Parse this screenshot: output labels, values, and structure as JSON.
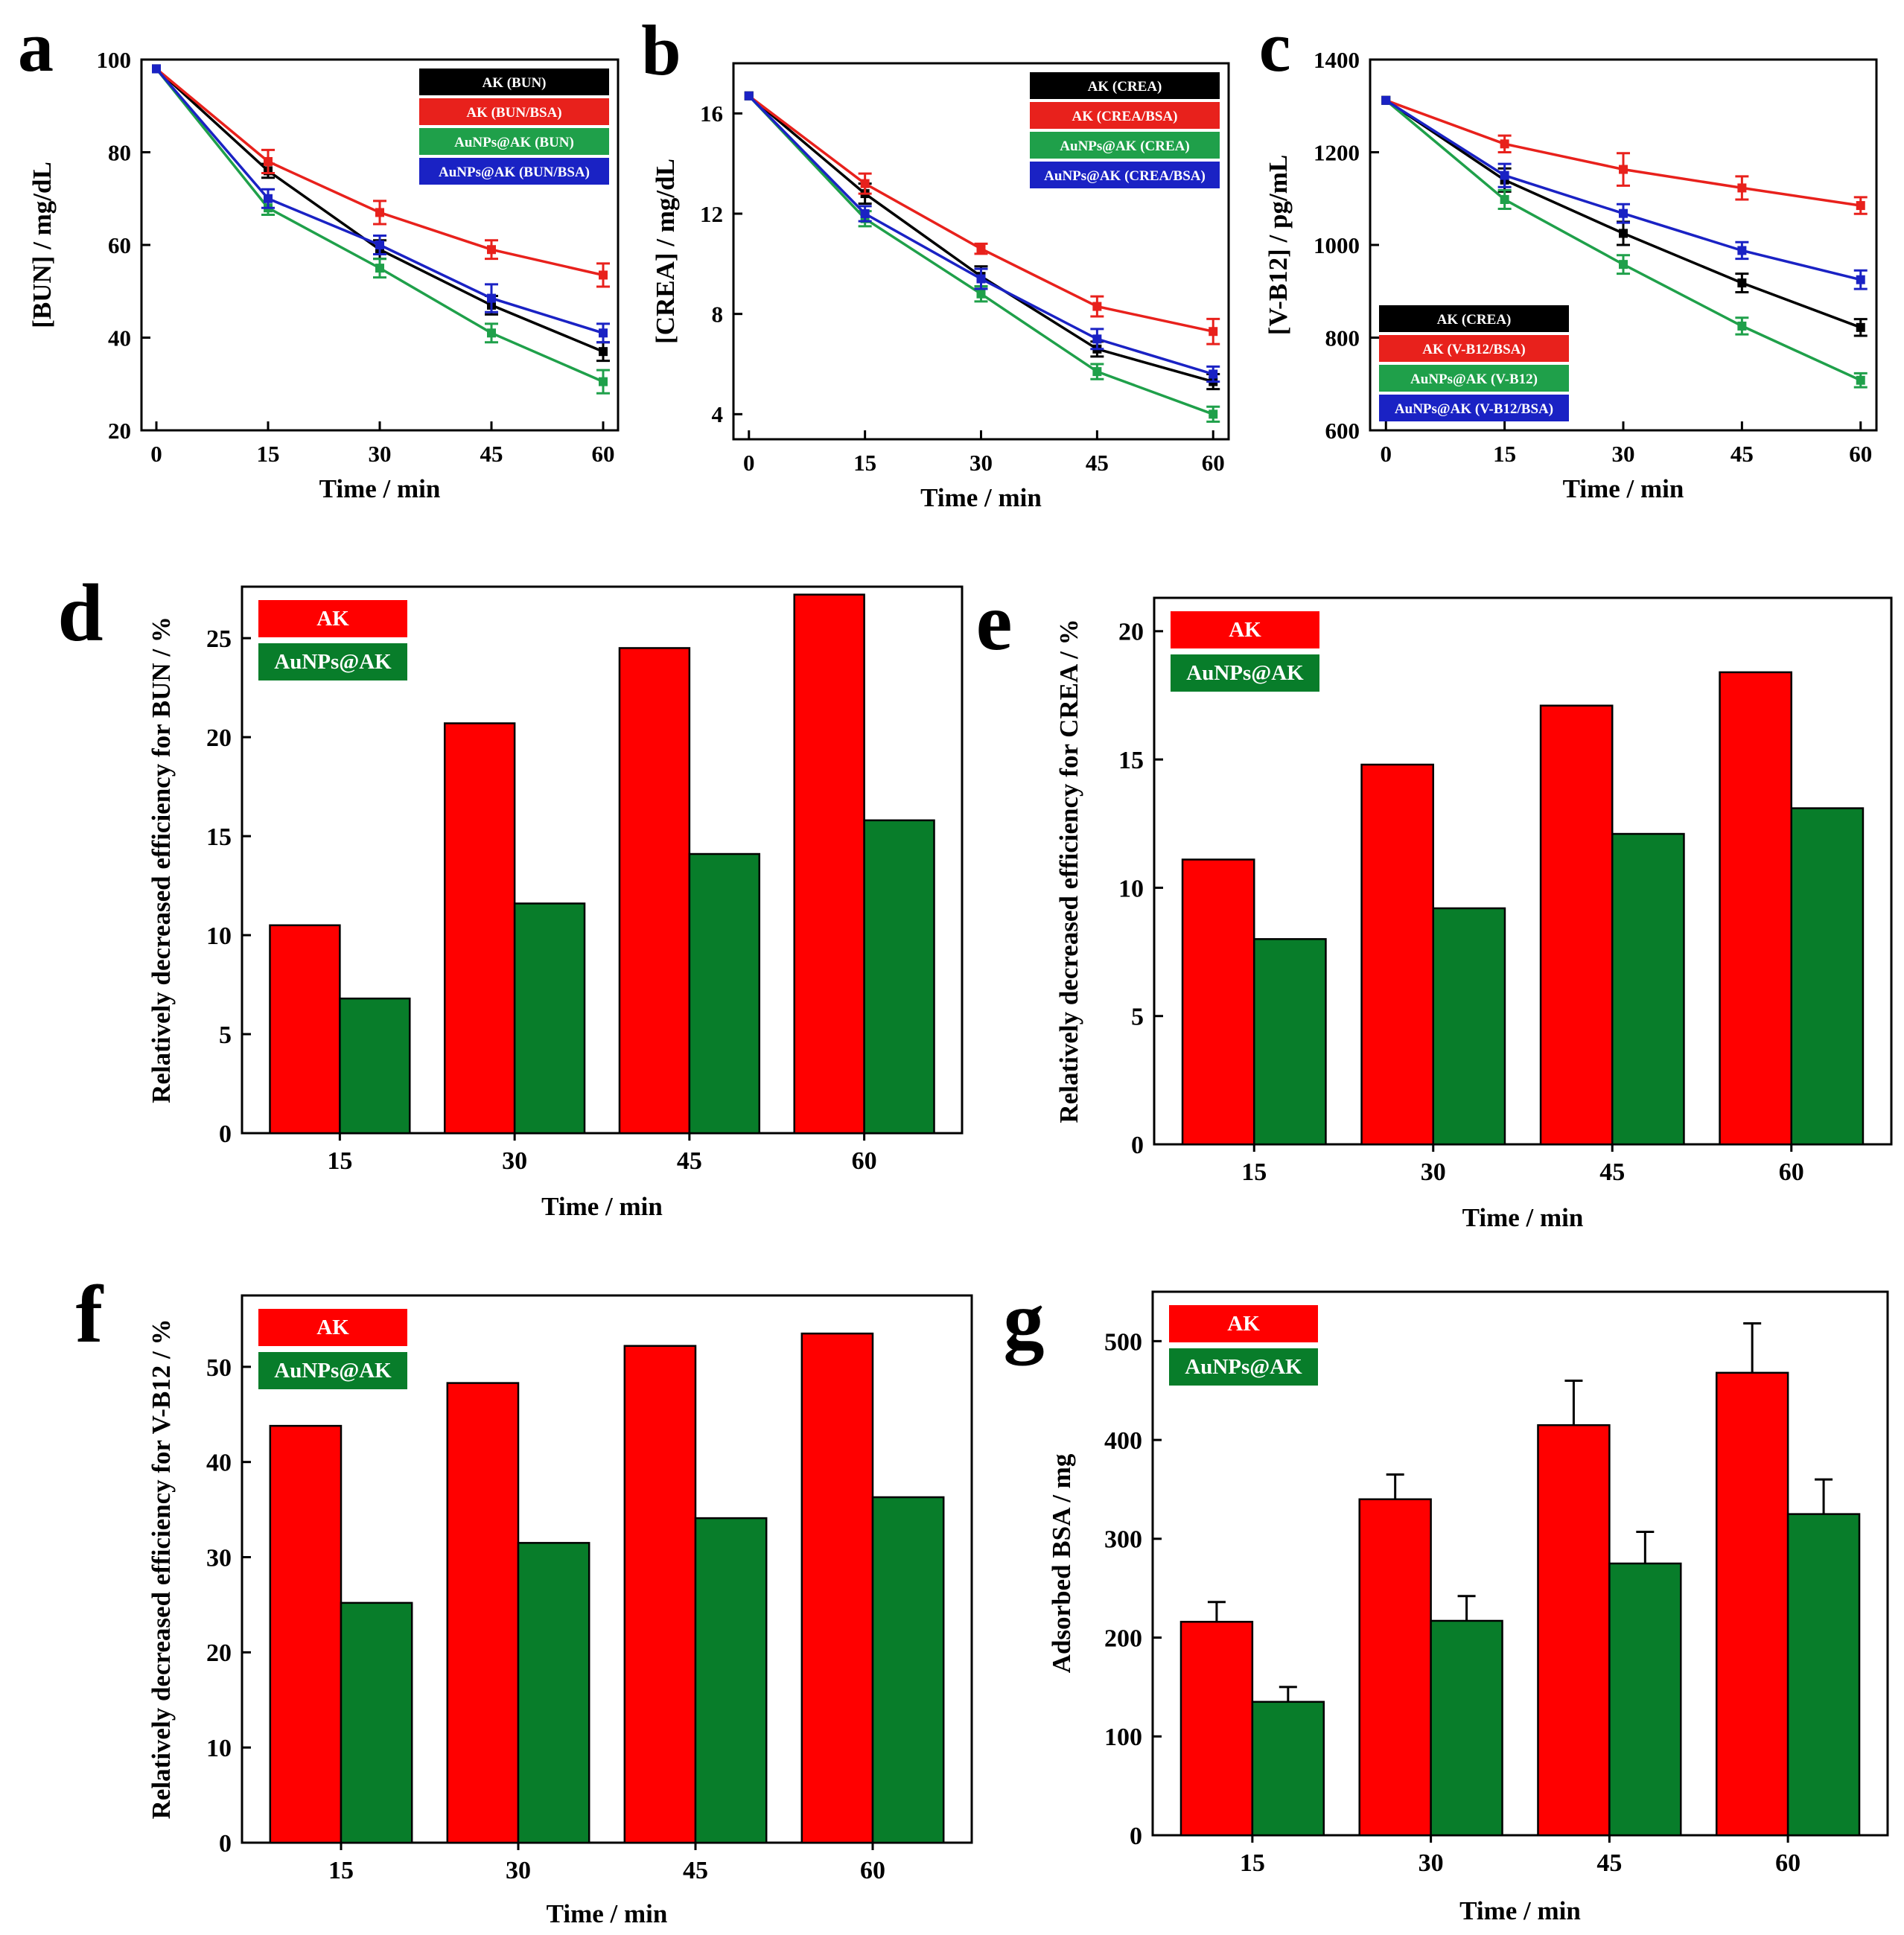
{
  "chart_data": [
    {
      "panel": "a",
      "type": "line",
      "xlabel": "Time / min",
      "ylabel": "[BUN] / mg/dL",
      "x": [
        0,
        15,
        30,
        45,
        60
      ],
      "xlim": [
        -2,
        62
      ],
      "ylim": [
        20,
        100
      ],
      "xticks": [
        0,
        15,
        30,
        45,
        60
      ],
      "yticks": [
        20,
        40,
        60,
        80,
        100
      ],
      "legend_position": "top-right",
      "series": [
        {
          "name": "AK (BUN)",
          "color": "#000000",
          "values": [
            98,
            76,
            59,
            47,
            37
          ],
          "errors": [
            0,
            1.5,
            2,
            2,
            2
          ]
        },
        {
          "name": "AK (BUN/BSA)",
          "color": "#e8211c",
          "values": [
            98,
            78,
            67,
            59,
            53.5
          ],
          "errors": [
            0,
            2.5,
            2.5,
            2,
            2.5
          ]
        },
        {
          "name": "AuNPs@AK (BUN)",
          "color": "#1fa04a",
          "values": [
            98,
            68,
            55,
            41,
            30.5
          ],
          "errors": [
            0,
            1.5,
            2,
            2,
            2.5
          ]
        },
        {
          "name": "AuNPs@AK (BUN/BSA)",
          "color": "#1a22c4",
          "values": [
            98,
            70,
            60,
            48.5,
            41
          ],
          "errors": [
            0,
            2,
            2,
            3,
            2
          ]
        }
      ]
    },
    {
      "panel": "b",
      "type": "line",
      "xlabel": "Time / min",
      "ylabel": "[CREA] / mg/dL",
      "x": [
        0,
        15,
        30,
        45,
        60
      ],
      "xlim": [
        -2,
        62
      ],
      "ylim": [
        3,
        18
      ],
      "xticks": [
        0,
        15,
        30,
        45,
        60
      ],
      "yticks": [
        4,
        8,
        12,
        16
      ],
      "legend_position": "top-right",
      "series": [
        {
          "name": "AK (CREA)",
          "color": "#000000",
          "values": [
            16.7,
            12.8,
            9.5,
            6.6,
            5.3
          ],
          "errors": [
            0,
            0.4,
            0.4,
            0.3,
            0.3
          ]
        },
        {
          "name": "AK (CREA/BSA)",
          "color": "#e8211c",
          "values": [
            16.7,
            13.2,
            10.6,
            8.3,
            7.3
          ],
          "errors": [
            0,
            0.4,
            0.2,
            0.4,
            0.5
          ]
        },
        {
          "name": "AuNPs@AK (CREA)",
          "color": "#1fa04a",
          "values": [
            16.7,
            11.8,
            8.8,
            5.7,
            4.0
          ],
          "errors": [
            0,
            0.3,
            0.3,
            0.3,
            0.3
          ]
        },
        {
          "name": "AuNPs@AK (CREA/BSA)",
          "color": "#1a22c4",
          "values": [
            16.7,
            12.0,
            9.4,
            7.0,
            5.6
          ],
          "errors": [
            0,
            0.3,
            0.4,
            0.4,
            0.3
          ]
        }
      ]
    },
    {
      "panel": "c",
      "type": "line",
      "xlabel": "Time / min",
      "ylabel": "[V-B12] / pg/mL",
      "x": [
        0,
        15,
        30,
        45,
        60
      ],
      "xlim": [
        -2,
        62
      ],
      "ylim": [
        600,
        1400
      ],
      "xticks": [
        0,
        15,
        30,
        45,
        60
      ],
      "yticks": [
        600,
        800,
        1000,
        1200,
        1400
      ],
      "legend_position": "bottom-left",
      "series": [
        {
          "name": "AK (CREA)",
          "color": "#000000",
          "values": [
            1312,
            1140,
            1025,
            918,
            822
          ],
          "errors": [
            0,
            25,
            25,
            20,
            18
          ]
        },
        {
          "name": "AK (V-B12/BSA)",
          "color": "#e8211c",
          "values": [
            1312,
            1218,
            1163,
            1123,
            1085
          ],
          "errors": [
            0,
            18,
            35,
            25,
            18
          ]
        },
        {
          "name": "AuNPs@AK (V-B12)",
          "color": "#1fa04a",
          "values": [
            1312,
            1098,
            958,
            825,
            708
          ],
          "errors": [
            0,
            20,
            20,
            18,
            15
          ]
        },
        {
          "name": "AuNPs@AK (V-B12/BSA)",
          "color": "#1a22c4",
          "values": [
            1312,
            1150,
            1068,
            988,
            925
          ],
          "errors": [
            0,
            25,
            20,
            18,
            20
          ]
        }
      ]
    },
    {
      "panel": "d",
      "type": "bar",
      "xlabel": "Time / min",
      "ylabel": "Relatively decreased efficiency for BUN / %",
      "categories": [
        "15",
        "30",
        "45",
        "60"
      ],
      "ylim": [
        0,
        27.6
      ],
      "yticks": [
        0,
        5,
        10,
        15,
        20,
        25
      ],
      "legend_position": "top-left",
      "series": [
        {
          "name": "AK",
          "color": "#ff0000",
          "values": [
            10.5,
            20.7,
            24.5,
            27.2
          ]
        },
        {
          "name": "AuNPs@AK",
          "color": "#087d2a",
          "values": [
            6.8,
            11.6,
            14.1,
            15.8
          ]
        }
      ]
    },
    {
      "panel": "e",
      "type": "bar",
      "xlabel": "Time / min",
      "ylabel": "Relatively decreased efficiency for CREA / %",
      "categories": [
        "15",
        "30",
        "45",
        "60"
      ],
      "ylim": [
        0,
        21.3
      ],
      "yticks": [
        0,
        5,
        10,
        15,
        20
      ],
      "legend_position": "top-left",
      "series": [
        {
          "name": "AK",
          "color": "#ff0000",
          "values": [
            11.1,
            14.8,
            17.1,
            18.4
          ]
        },
        {
          "name": "AuNPs@AK",
          "color": "#087d2a",
          "values": [
            8.0,
            9.2,
            12.1,
            13.1
          ]
        }
      ]
    },
    {
      "panel": "f",
      "type": "bar",
      "xlabel": "Time / min",
      "ylabel": "Relatively decreased efficiency for V-B12 / %",
      "categories": [
        "15",
        "30",
        "45",
        "60"
      ],
      "ylim": [
        0,
        57.5
      ],
      "yticks": [
        0,
        10,
        20,
        30,
        40,
        50
      ],
      "legend_position": "top-left",
      "series": [
        {
          "name": "AK",
          "color": "#ff0000",
          "values": [
            43.8,
            48.3,
            52.2,
            53.5
          ]
        },
        {
          "name": "AuNPs@AK",
          "color": "#087d2a",
          "values": [
            25.2,
            31.5,
            34.1,
            36.3
          ]
        }
      ]
    },
    {
      "panel": "g",
      "type": "bar",
      "xlabel": "Time / min",
      "ylabel": "Adsorbed BSA / mg",
      "categories": [
        "15",
        "30",
        "45",
        "60"
      ],
      "ylim": [
        0,
        550
      ],
      "yticks": [
        0,
        100,
        200,
        300,
        400,
        500
      ],
      "legend_position": "top-left",
      "series": [
        {
          "name": "AK",
          "color": "#ff0000",
          "values": [
            216,
            340,
            415,
            468
          ],
          "errors": [
            20,
            25,
            45,
            50
          ]
        },
        {
          "name": "AuNPs@AK",
          "color": "#087d2a",
          "values": [
            135,
            217,
            275,
            325
          ],
          "errors": [
            15,
            25,
            32,
            35
          ]
        }
      ]
    }
  ]
}
